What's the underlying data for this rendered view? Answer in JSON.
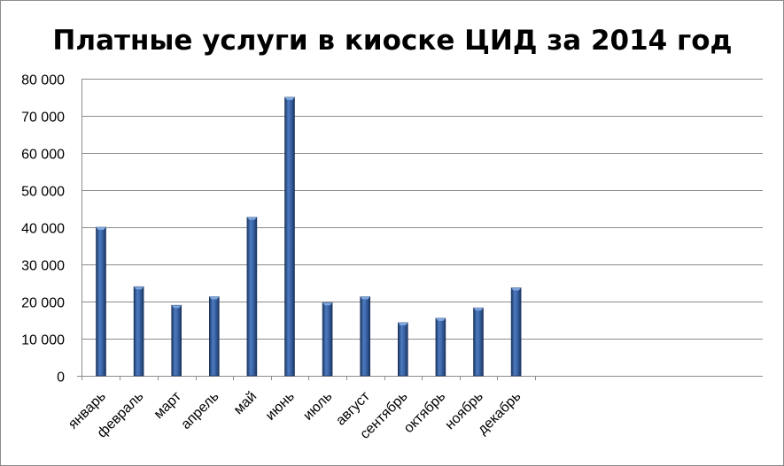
{
  "chart_data": {
    "type": "bar",
    "title": "Платные услуги в киоске ЦИД за 2014 год",
    "xlabel": "",
    "ylabel": "",
    "categories": [
      "январь",
      "февраль",
      "март",
      "апрель",
      "май",
      "июнь",
      "июль",
      "август",
      "сентябрь",
      "октябрь",
      "ноябрь",
      "декабрь"
    ],
    "values": [
      40000,
      24000,
      19000,
      21300,
      42700,
      75000,
      19700,
      21300,
      14300,
      15500,
      18300,
      23700
    ],
    "ylim": [
      0,
      80000
    ],
    "yticks": [
      0,
      10000,
      20000,
      30000,
      40000,
      50000,
      60000,
      70000,
      80000
    ],
    "ytick_labels": [
      "0",
      "10 000",
      "20 000",
      "30 000",
      "40 000",
      "50 000",
      "60 000",
      "70 000",
      "80 000"
    ],
    "grid": true,
    "legend": "none",
    "colors": {
      "bar_dark": "#1f3f73",
      "bar_mid": "#4d7ac0",
      "bar_light": "#6f9ad8",
      "grid": "#8c8c8c",
      "axis": "#8c8c8c"
    }
  }
}
